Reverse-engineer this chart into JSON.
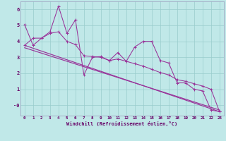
{
  "title": "",
  "xlabel": "Windchill (Refroidissement éolien,°C)",
  "ylabel": "",
  "bg_color": "#c0e8e8",
  "grid_color": "#99cccc",
  "line_color": "#993399",
  "spine_color": "#9999bb",
  "xlim": [
    -0.5,
    23.5
  ],
  "ylim": [
    -0.65,
    6.5
  ],
  "xtick_labels": [
    "0",
    "1",
    "2",
    "3",
    "4",
    "5",
    "6",
    "7",
    "8",
    "9",
    "10",
    "11",
    "12",
    "13",
    "14",
    "15",
    "16",
    "17",
    "18",
    "19",
    "20",
    "21",
    "22",
    "23"
  ],
  "ytick_labels": [
    "-0",
    "1",
    "2",
    "3",
    "4",
    "5",
    "6"
  ],
  "ytick_vals": [
    0,
    1,
    2,
    3,
    4,
    5,
    6
  ],
  "line1_x": [
    0,
    1,
    2,
    3,
    4,
    5,
    6,
    7,
    8,
    9,
    10,
    11,
    12,
    13,
    14,
    15,
    16,
    17,
    18,
    19,
    20,
    21,
    22,
    23
  ],
  "line1_y": [
    5.05,
    3.75,
    4.2,
    4.6,
    6.2,
    4.5,
    5.35,
    1.9,
    3.0,
    3.05,
    2.8,
    3.3,
    2.75,
    3.65,
    4.0,
    4.0,
    2.8,
    2.65,
    1.4,
    1.4,
    1.0,
    0.9,
    -0.3,
    -0.4
  ],
  "line2_x": [
    0,
    1,
    2,
    3,
    4,
    5,
    6,
    7,
    8,
    9,
    10,
    11,
    12,
    13,
    14,
    15,
    16,
    17,
    18,
    19,
    20,
    21,
    22,
    23
  ],
  "line2_y": [
    3.75,
    4.2,
    4.2,
    4.5,
    4.6,
    4.0,
    3.8,
    3.1,
    3.05,
    3.0,
    2.8,
    2.9,
    2.75,
    2.6,
    2.45,
    2.25,
    2.05,
    1.9,
    1.6,
    1.5,
    1.35,
    1.2,
    1.0,
    -0.4
  ],
  "line3_x": [
    0,
    23
  ],
  "line3_y": [
    3.75,
    -0.4
  ],
  "line4_x": [
    0,
    23
  ],
  "line4_y": [
    3.6,
    -0.3
  ]
}
